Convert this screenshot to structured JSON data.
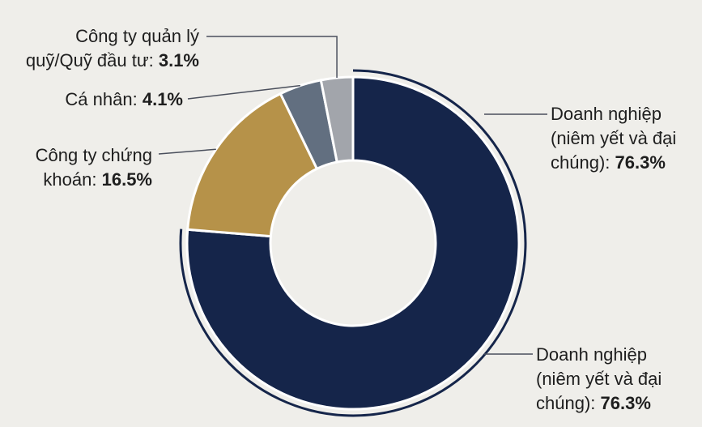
{
  "chart_data": {
    "type": "pie",
    "donut": true,
    "slices": [
      {
        "label_lines": [
          "Doanh nghiệp",
          "(niêm yết và đại",
          "chúng):"
        ],
        "value": 76.3,
        "value_text": "76.3%",
        "color": "#15254a"
      },
      {
        "label_lines": [
          "Công ty chứng",
          "khoán:"
        ],
        "value": 16.5,
        "value_text": "16.5%",
        "color": "#b69249"
      },
      {
        "label_lines": [
          "Cá nhân:"
        ],
        "value": 4.1,
        "value_text": "4.1%",
        "color": "#626f80"
      },
      {
        "label_lines": [
          "Công ty quản lý",
          "quỹ/Quỹ đầu tư:"
        ],
        "value": 3.1,
        "value_text": "3.1%",
        "color": "#a2a5ab"
      }
    ],
    "duplicate_label": {
      "label_lines": [
        "Doanh nghiệp",
        "(niêm yết và đại",
        "chúng):"
      ],
      "value_text": "76.3%"
    }
  }
}
